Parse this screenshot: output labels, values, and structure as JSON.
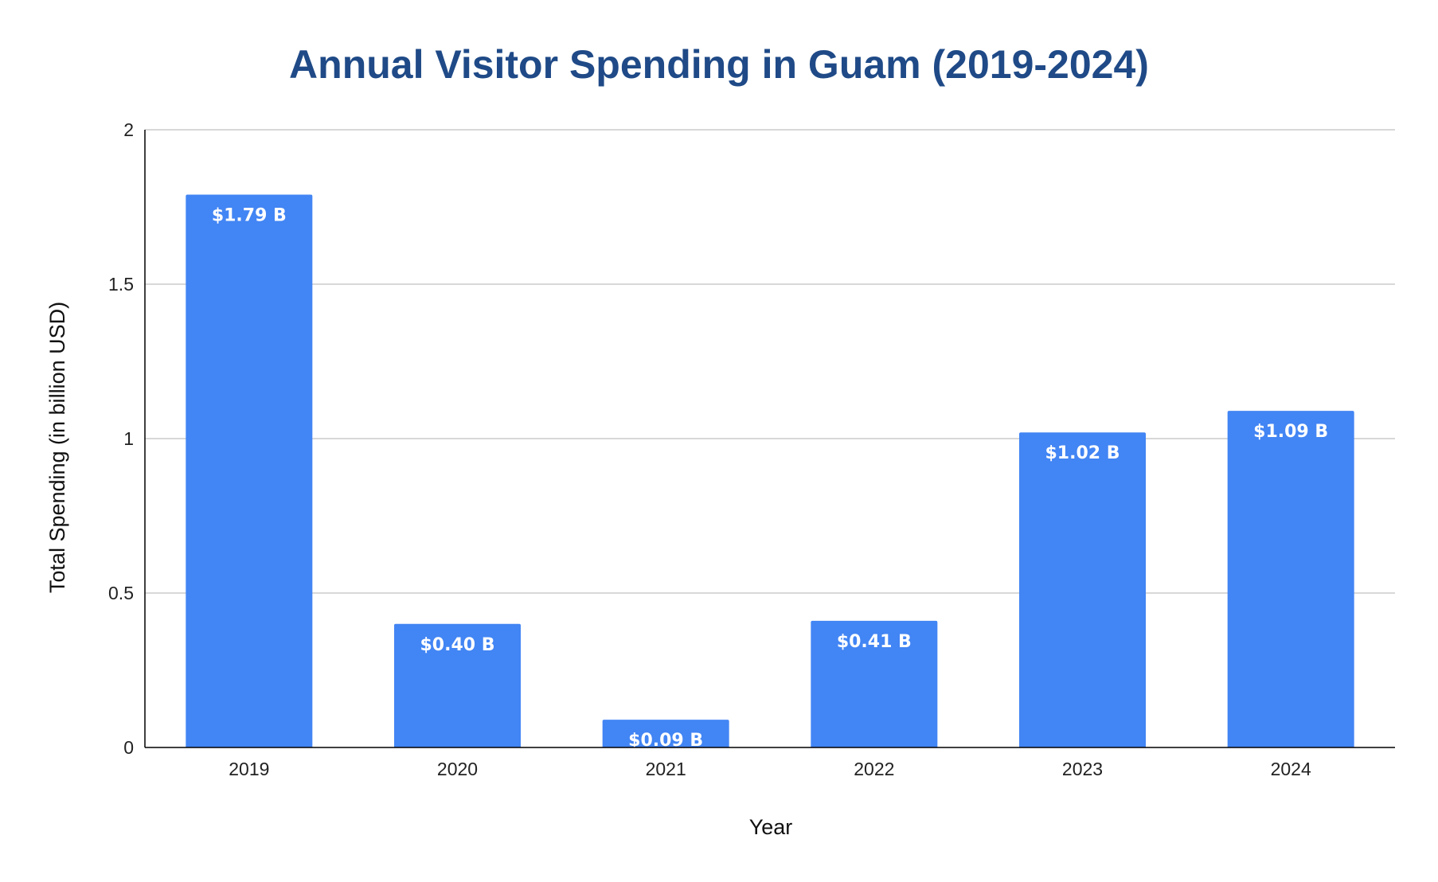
{
  "chart_data": {
    "type": "bar",
    "title": "Annual Visitor Spending in Guam (2019-2024)",
    "xlabel": "Year",
    "ylabel": "Total Spending (in billion USD)",
    "categories": [
      "2019",
      "2020",
      "2021",
      "2022",
      "2023",
      "2024"
    ],
    "values": [
      1.79,
      0.4,
      0.09,
      0.41,
      1.02,
      1.09
    ],
    "data_labels": [
      "$1.79 B",
      "$0.40 B",
      "$0.09 B",
      "$0.41 B",
      "$1.02 B",
      "$1.09 B"
    ],
    "ylim": [
      0,
      2
    ],
    "yticks": [
      0,
      0.5,
      1,
      1.5,
      2
    ],
    "ytick_labels": [
      "0",
      "0.5",
      "1",
      "1.5",
      "2"
    ],
    "grid": true,
    "legend": "none",
    "colors": {
      "bar": "#4285F4",
      "title": "#1F4A87",
      "grid": "#CCCCCC",
      "axis": "#000000",
      "data_label": "#FFFFFF"
    }
  }
}
